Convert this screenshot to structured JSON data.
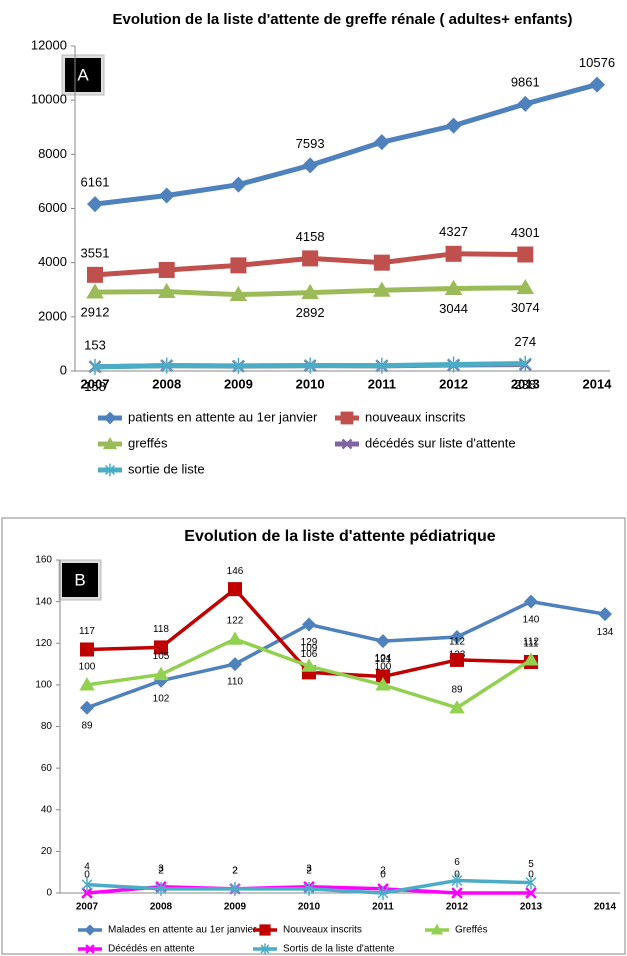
{
  "chart_data": [
    {
      "type": "line",
      "title": "Evolution de la liste d'attente de greffe rénale ( adultes+ enfants)",
      "panel": "A",
      "categories": [
        "2007",
        "2008",
        "2009",
        "2010",
        "2011",
        "2012",
        "2013",
        "2014"
      ],
      "ylim": [
        0,
        12000
      ],
      "yticks": [
        0,
        2000,
        4000,
        6000,
        8000,
        10000,
        12000
      ],
      "grid": false,
      "series": [
        {
          "name": "patients en attente au 1er janvier",
          "color": "#4f81bd",
          "marker": "diamond",
          "label_position": "above",
          "values": [
            6161,
            6480,
            6880,
            7593,
            8450,
            9060,
            9861,
            10576
          ],
          "value_labels": [
            "6161",
            null,
            null,
            "7593",
            null,
            null,
            "9861",
            "10576"
          ]
        },
        {
          "name": "nouveaux inscrits",
          "color": "#c0504d",
          "marker": "square",
          "label_position": "above",
          "values": [
            3551,
            3730,
            3900,
            4158,
            4000,
            4327,
            4301,
            null
          ],
          "value_labels": [
            "3551",
            null,
            null,
            "4158",
            null,
            "4327",
            "4301",
            null
          ]
        },
        {
          "name": "greffés",
          "color": "#9bbb59",
          "marker": "triangle",
          "label_position": "below",
          "values": [
            2912,
            2930,
            2820,
            2892,
            2980,
            3044,
            3074,
            null
          ],
          "value_labels": [
            "2912",
            null,
            null,
            "2892",
            null,
            "3044",
            "3074",
            null
          ]
        },
        {
          "name": "décédés sur liste d'attente",
          "color": "#8064a2",
          "marker": "x",
          "label_position": "below",
          "values": [
            158,
            200,
            180,
            200,
            190,
            220,
            238,
            null
          ],
          "value_labels": [
            "158",
            null,
            null,
            null,
            null,
            null,
            "238",
            null
          ]
        },
        {
          "name": "sortie de liste",
          "color": "#4bacc6",
          "marker": "asterisk",
          "label_position": "above",
          "values": [
            153,
            200,
            190,
            200,
            200,
            240,
            274,
            null
          ],
          "value_labels": [
            "153",
            null,
            null,
            null,
            null,
            null,
            "274",
            null
          ]
        }
      ]
    },
    {
      "type": "line",
      "title": "Evolution de la liste d'attente pédiatrique",
      "panel": "B",
      "categories": [
        "2007",
        "2008",
        "2009",
        "2010",
        "2011",
        "2012",
        "2013",
        "2014"
      ],
      "ylim": [
        0,
        160
      ],
      "yticks": [
        0,
        20,
        40,
        60,
        80,
        100,
        120,
        140,
        160
      ],
      "grid": false,
      "series": [
        {
          "name": "Malades en attente au 1er janvier",
          "color": "#4f81bd",
          "marker": "diamond",
          "label_position": "below",
          "values": [
            89,
            102,
            110,
            129,
            121,
            123,
            140,
            134
          ],
          "value_labels": [
            "89",
            "102",
            "110",
            "129",
            "121",
            "123",
            "140",
            "134"
          ]
        },
        {
          "name": "Nouveaux inscrits",
          "color": "#c00000",
          "marker": "square",
          "label_position": "above",
          "values": [
            117,
            118,
            146,
            106,
            104,
            112,
            111,
            null
          ],
          "value_labels": [
            "117",
            "118",
            "146",
            "106",
            "104",
            "112",
            "111",
            null
          ]
        },
        {
          "name": "Greffés",
          "color": "#92d050",
          "marker": "triangle",
          "label_position": "above",
          "values": [
            100,
            105,
            122,
            109,
            100,
            89,
            112,
            null
          ],
          "value_labels": [
            "100",
            "105",
            "122",
            "109",
            "100",
            "89",
            "112",
            null
          ]
        },
        {
          "name": "Décédés en attente",
          "color": "#ff00ff",
          "marker": "x",
          "label_position": "above",
          "values": [
            0,
            3,
            2,
            3,
            2,
            0,
            0,
            null
          ],
          "value_labels": [
            "0",
            "3",
            "2",
            "3",
            "2",
            "0",
            "0",
            null
          ]
        },
        {
          "name": "Sortis de la liste d'attente",
          "color": "#4bacc6",
          "marker": "asterisk",
          "label_position": "above",
          "values": [
            4,
            2,
            2,
            2,
            0,
            6,
            5,
            null
          ],
          "value_labels": [
            "4",
            "2",
            "2",
            "2",
            "0",
            "6",
            "5",
            null
          ]
        }
      ]
    }
  ]
}
